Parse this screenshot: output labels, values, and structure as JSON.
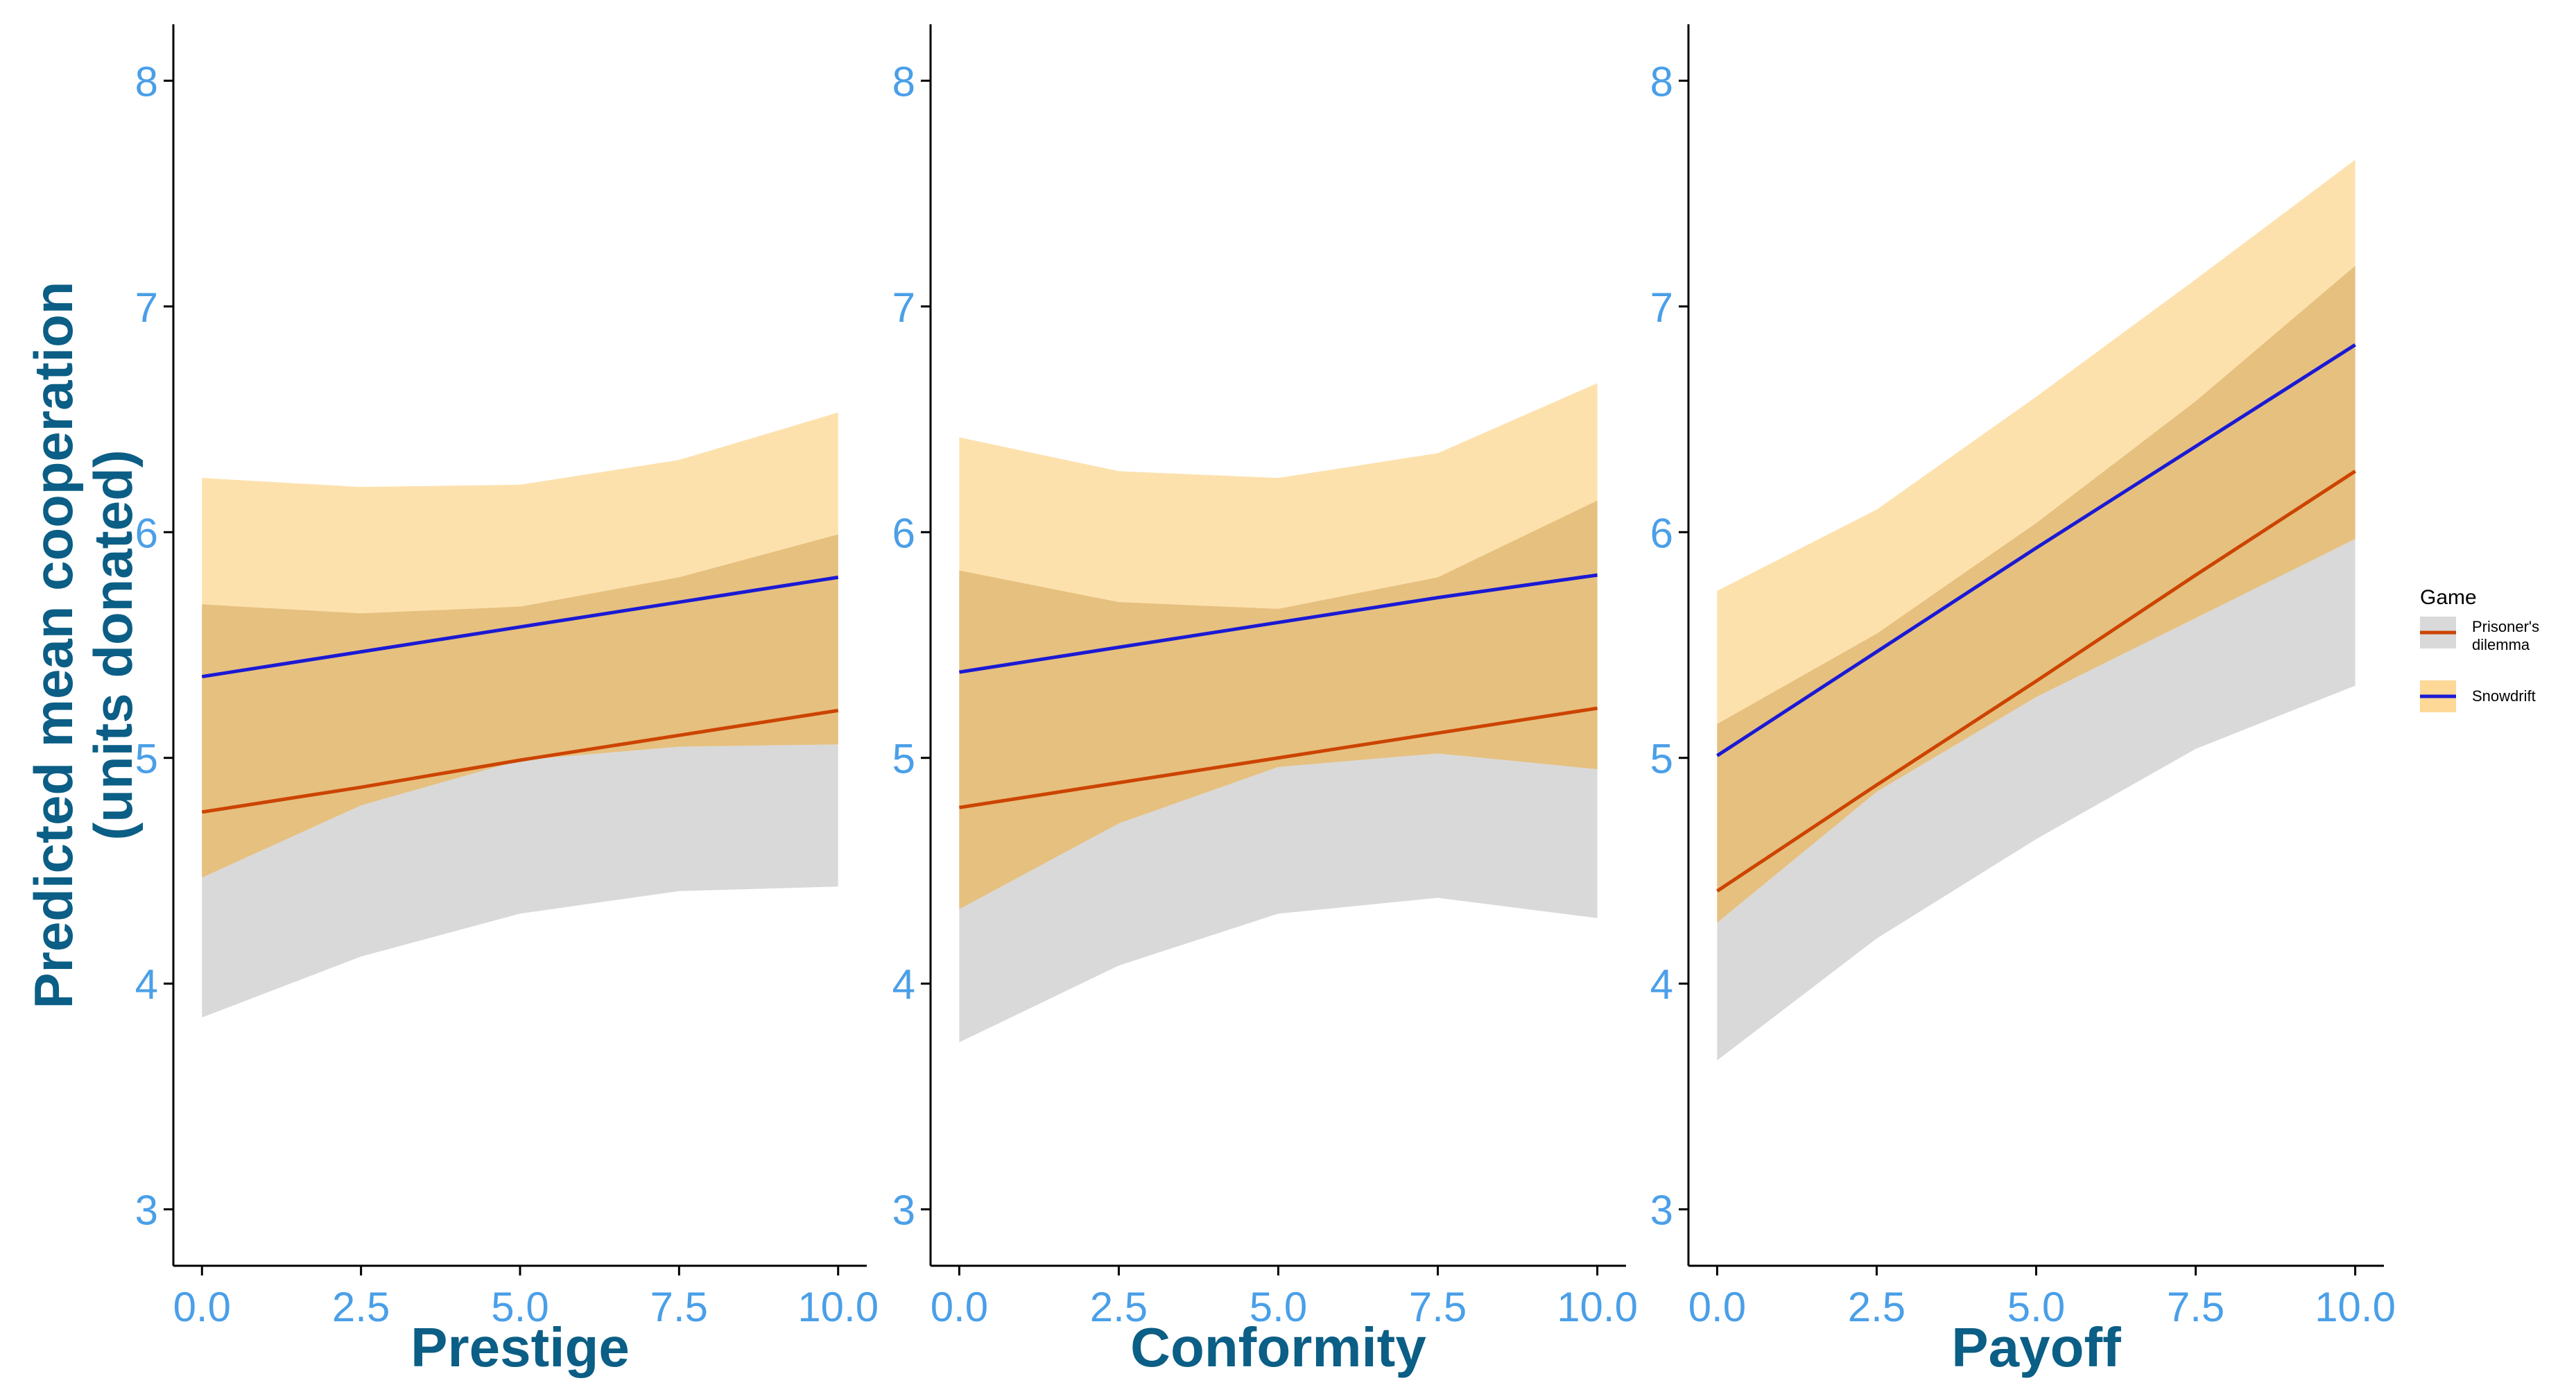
{
  "ylabel": [
    "Predicted mean cooperation",
    "(units donated)"
  ],
  "legend": {
    "title": "Game",
    "entries": [
      {
        "label_lines": [
          "Prisoner's",
          "dilemma"
        ],
        "line_color": "#cc4400",
        "fill_color": "#d9d9d9"
      },
      {
        "label_lines": [
          "Snowdrift"
        ],
        "line_color": "#1a1ad4",
        "fill_color": "#fdd896"
      }
    ]
  },
  "colors": {
    "axis_tick_text": "#4a9fe8",
    "axis_title": "#0b5e85",
    "pd_band": "#d9d9d9",
    "sd_band": "#fdd896",
    "overlap_band": "#e6c07f",
    "pd_line": "#cc4400",
    "sd_line": "#1a1ad4"
  },
  "chart_data": [
    {
      "type": "line",
      "xlabel": "Prestige",
      "ylabel": "Predicted mean cooperation (units donated)",
      "xlim": [
        -0.45,
        10.45
      ],
      "ylim": [
        2.75,
        8.25
      ],
      "xticks": [
        "0.0",
        "2.5",
        "5.0",
        "7.5",
        "10.0"
      ],
      "yticks": [
        "3",
        "4",
        "5",
        "6",
        "7",
        "8"
      ],
      "x": [
        0,
        2.5,
        5,
        7.5,
        10
      ],
      "series": [
        {
          "name": "Prisoner's dilemma",
          "fit": [
            4.76,
            4.87,
            4.99,
            5.1,
            5.21
          ],
          "lower": [
            3.85,
            4.12,
            4.31,
            4.41,
            4.43
          ],
          "upper": [
            5.68,
            5.64,
            5.67,
            5.8,
            5.99
          ]
        },
        {
          "name": "Snowdrift",
          "fit": [
            5.36,
            5.47,
            5.58,
            5.69,
            5.8
          ],
          "lower": [
            4.47,
            4.79,
            4.99,
            5.05,
            5.06
          ],
          "upper": [
            6.24,
            6.2,
            6.21,
            6.32,
            6.53
          ]
        }
      ]
    },
    {
      "type": "line",
      "xlabel": "Conformity",
      "ylabel": "",
      "xlim": [
        -0.45,
        10.45
      ],
      "ylim": [
        2.75,
        8.25
      ],
      "xticks": [
        "0.0",
        "2.5",
        "5.0",
        "7.5",
        "10.0"
      ],
      "yticks": [
        "3",
        "4",
        "5",
        "6",
        "7",
        "8"
      ],
      "x": [
        0,
        2.5,
        5,
        7.5,
        10
      ],
      "series": [
        {
          "name": "Prisoner's dilemma",
          "fit": [
            4.78,
            4.89,
            5.0,
            5.11,
            5.22
          ],
          "lower": [
            3.74,
            4.08,
            4.31,
            4.38,
            4.29
          ],
          "upper": [
            5.83,
            5.69,
            5.66,
            5.8,
            6.14
          ]
        },
        {
          "name": "Snowdrift",
          "fit": [
            5.38,
            5.49,
            5.6,
            5.71,
            5.81
          ],
          "lower": [
            4.33,
            4.71,
            4.96,
            5.02,
            4.95
          ],
          "upper": [
            6.42,
            6.27,
            6.24,
            6.35,
            6.66
          ]
        }
      ]
    },
    {
      "type": "line",
      "xlabel": "Payoff",
      "ylabel": "",
      "xlim": [
        -0.45,
        10.45
      ],
      "ylim": [
        2.75,
        8.25
      ],
      "xticks": [
        "0.0",
        "2.5",
        "5.0",
        "7.5",
        "10.0"
      ],
      "yticks": [
        "3",
        "4",
        "5",
        "6",
        "7",
        "8"
      ],
      "x": [
        0,
        2.5,
        5,
        7.5,
        10
      ],
      "series": [
        {
          "name": "Prisoner's dilemma",
          "fit": [
            4.41,
            4.88,
            5.34,
            5.81,
            6.27
          ],
          "lower": [
            3.66,
            4.2,
            4.64,
            5.04,
            5.32
          ],
          "upper": [
            5.15,
            5.55,
            6.04,
            6.58,
            7.18
          ]
        },
        {
          "name": "Snowdrift",
          "fit": [
            5.01,
            5.47,
            5.93,
            6.38,
            6.83
          ],
          "lower": [
            4.27,
            4.85,
            5.27,
            5.62,
            5.97
          ],
          "upper": [
            5.74,
            6.1,
            6.6,
            7.12,
            7.65
          ]
        }
      ]
    }
  ]
}
